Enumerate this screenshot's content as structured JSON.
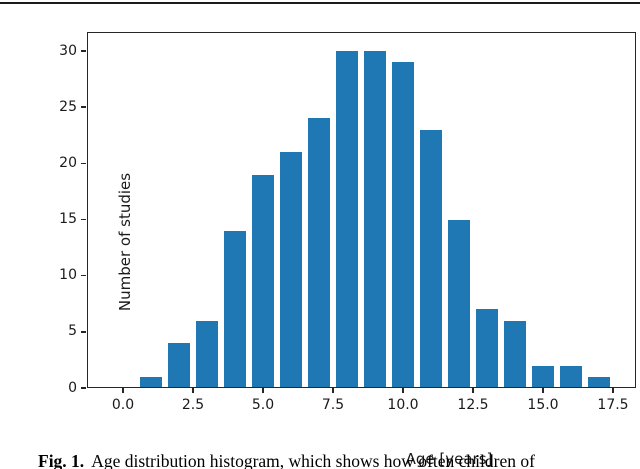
{
  "chart_data": {
    "type": "bar",
    "title": "",
    "xlabel": "Age [years]",
    "ylabel": "Number of studies",
    "categories": [
      1,
      2,
      3,
      4,
      5,
      6,
      7,
      8,
      9,
      10,
      11,
      12,
      13,
      14,
      15,
      16,
      17
    ],
    "values": [
      1,
      4,
      6,
      14,
      19,
      21,
      24,
      30,
      30,
      29,
      23,
      15,
      7,
      6,
      2,
      2,
      1
    ],
    "x_tick_values": [
      0,
      2.5,
      5,
      7.5,
      10,
      12.5,
      15,
      17.5
    ],
    "x_tick_labels": [
      "0.0",
      "2.5",
      "5.0",
      "7.5",
      "10.0",
      "12.5",
      "15.0",
      "17.5"
    ],
    "y_tick_values": [
      0,
      5,
      10,
      15,
      20,
      25,
      30
    ],
    "y_tick_labels": [
      "0",
      "5",
      "10",
      "15",
      "20",
      "25",
      "30"
    ],
    "xlim": [
      -1.286,
      18.321
    ],
    "ylim": [
      0,
      31.7
    ],
    "bar_width": 0.79,
    "bar_color": "#1f77b4",
    "spine_color": "#262626",
    "grid": false,
    "legend": null
  },
  "caption": {
    "label": "Fig. 1.",
    "text": "Age distribution histogram, which shows how often children of"
  }
}
